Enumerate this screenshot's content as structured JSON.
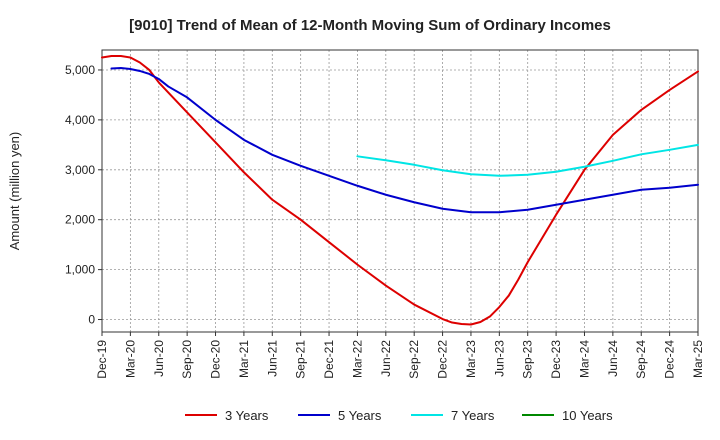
{
  "chart_data": {
    "type": "line",
    "title": "[9010]  Trend of Mean of 12-Month Moving Sum of Ordinary Incomes",
    "xlabel": "",
    "ylabel": "Amount (million yen)",
    "ylim": [
      -250,
      5400
    ],
    "yticks": [
      0,
      1000,
      2000,
      3000,
      4000,
      5000
    ],
    "ytick_labels": [
      "0",
      "1,000",
      "2,000",
      "3,000",
      "4,000",
      "5,000"
    ],
    "x_start": "Dec-19",
    "x_end": "Mar-25",
    "x_tick_labels": [
      "Dec-19",
      "Mar-20",
      "Jun-20",
      "Sep-20",
      "Dec-20",
      "Mar-21",
      "Jun-21",
      "Sep-21",
      "Dec-21",
      "Mar-22",
      "Jun-22",
      "Sep-22",
      "Dec-22",
      "Mar-23",
      "Jun-23",
      "Sep-23",
      "Dec-23",
      "Mar-24",
      "Jun-24",
      "Sep-24",
      "Dec-24",
      "Mar-25"
    ],
    "grid": true,
    "legend_position": "bottom",
    "series": [
      {
        "name": "3 Years",
        "color": "#dd0000",
        "points": [
          [
            0,
            5250
          ],
          [
            1,
            5280
          ],
          [
            2,
            5280
          ],
          [
            3,
            5250
          ],
          [
            4,
            5150
          ],
          [
            5,
            5000
          ],
          [
            6,
            4750
          ],
          [
            9,
            4150
          ],
          [
            12,
            3550
          ],
          [
            15,
            2950
          ],
          [
            18,
            2400
          ],
          [
            21,
            2000
          ],
          [
            24,
            1550
          ],
          [
            27,
            1100
          ],
          [
            30,
            680
          ],
          [
            33,
            300
          ],
          [
            36,
            10
          ],
          [
            37,
            -60
          ],
          [
            38,
            -90
          ],
          [
            39,
            -100
          ],
          [
            40,
            -50
          ],
          [
            41,
            60
          ],
          [
            42,
            250
          ],
          [
            43,
            480
          ],
          [
            44,
            800
          ],
          [
            45,
            1150
          ],
          [
            48,
            2100
          ],
          [
            51,
            3000
          ],
          [
            54,
            3700
          ],
          [
            57,
            4200
          ],
          [
            60,
            4600
          ],
          [
            63,
            4970
          ]
        ]
      },
      {
        "name": "5 Years",
        "color": "#0000cc",
        "points": [
          [
            1,
            5030
          ],
          [
            2,
            5040
          ],
          [
            3,
            5020
          ],
          [
            4,
            4980
          ],
          [
            5,
            4920
          ],
          [
            6,
            4820
          ],
          [
            7,
            4670
          ],
          [
            9,
            4450
          ],
          [
            12,
            4000
          ],
          [
            15,
            3600
          ],
          [
            18,
            3300
          ],
          [
            21,
            3080
          ],
          [
            24,
            2880
          ],
          [
            27,
            2680
          ],
          [
            30,
            2500
          ],
          [
            33,
            2350
          ],
          [
            36,
            2220
          ],
          [
            39,
            2150
          ],
          [
            42,
            2150
          ],
          [
            45,
            2200
          ],
          [
            48,
            2300
          ],
          [
            51,
            2400
          ],
          [
            54,
            2500
          ],
          [
            57,
            2600
          ],
          [
            60,
            2640
          ],
          [
            63,
            2700
          ]
        ]
      },
      {
        "name": "7 Years",
        "color": "#00e5e5",
        "points": [
          [
            27,
            3270
          ],
          [
            30,
            3190
          ],
          [
            33,
            3100
          ],
          [
            36,
            2990
          ],
          [
            39,
            2910
          ],
          [
            42,
            2880
          ],
          [
            45,
            2900
          ],
          [
            48,
            2960
          ],
          [
            51,
            3060
          ],
          [
            54,
            3180
          ],
          [
            57,
            3310
          ],
          [
            60,
            3400
          ],
          [
            63,
            3500
          ]
        ]
      },
      {
        "name": "10 Years",
        "color": "#008800",
        "points": []
      }
    ]
  }
}
